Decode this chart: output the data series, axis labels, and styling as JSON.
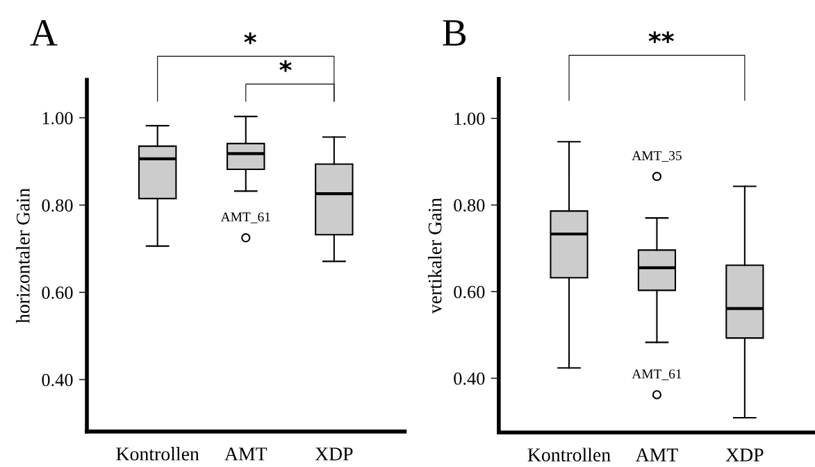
{
  "chart_data": [
    {
      "type": "box",
      "title": "A",
      "ylabel": "horizontaler Gain",
      "categories": [
        "Kontrollen",
        "AMT",
        "XDP"
      ],
      "color": "#cccccc",
      "ylim": [
        0.281,
        1.087
      ],
      "yticks": [
        {
          "value": 0.4,
          "label": "0.40"
        },
        {
          "value": 0.6,
          "label": "0.60"
        },
        {
          "value": 0.8,
          "label": "0.80"
        },
        {
          "value": 1.0,
          "label": "1.00"
        }
      ],
      "grid": false,
      "legend": false,
      "boxes": [
        {
          "low": 0.706,
          "q1": 0.815,
          "median": 0.906,
          "q3": 0.935,
          "high": 0.982
        },
        {
          "low": 0.832,
          "q1": 0.882,
          "median": 0.918,
          "q3": 0.941,
          "high": 1.003,
          "outliers": [
            0.725
          ]
        },
        {
          "low": 0.671,
          "q1": 0.732,
          "median": 0.826,
          "q3": 0.894,
          "high": 0.956
        }
      ],
      "annotations": [
        "*",
        "*",
        "AMT_61"
      ]
    },
    {
      "type": "box",
      "title": "B",
      "ylabel": "vertikaler Gain",
      "categories": [
        "Kontrollen",
        "AMT",
        "XDP"
      ],
      "color": "#cccccc",
      "ylim": [
        0.275,
        1.091
      ],
      "yticks": [
        {
          "value": 0.4,
          "label": "0.40"
        },
        {
          "value": 0.6,
          "label": "0.60"
        },
        {
          "value": 0.8,
          "label": "0.80"
        },
        {
          "value": 1.0,
          "label": "1.00"
        }
      ],
      "grid": false,
      "legend": false,
      "boxes": [
        {
          "low": 0.424,
          "q1": 0.632,
          "median": 0.733,
          "q3": 0.786,
          "high": 0.946
        },
        {
          "low": 0.483,
          "q1": 0.603,
          "median": 0.655,
          "q3": 0.696,
          "high": 0.77,
          "outliers": [
            0.866,
            0.362
          ]
        },
        {
          "low": 0.309,
          "q1": 0.493,
          "median": 0.561,
          "q3": 0.661,
          "high": 0.843
        }
      ],
      "annotations": [
        "**",
        "AMT_35",
        "AMT_61"
      ]
    }
  ]
}
